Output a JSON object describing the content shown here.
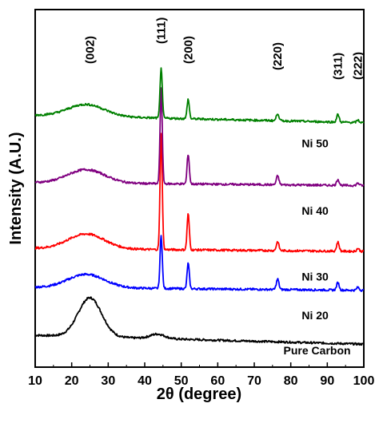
{
  "chart_data": {
    "type": "line",
    "xlabel": "2θ (degree)",
    "ylabel": "Intensity (A.U.)",
    "xlim": [
      10,
      100
    ],
    "x_ticks": [
      10,
      20,
      30,
      40,
      50,
      60,
      70,
      80,
      90,
      100
    ],
    "y_ticks_shown": false,
    "grid": false,
    "peak_labels": [
      {
        "label": "(002)",
        "x": 25
      },
      {
        "label": "(111)",
        "x": 44.5
      },
      {
        "label": "(200)",
        "x": 51.9
      },
      {
        "label": "(220)",
        "x": 76.4
      },
      {
        "label": "(311)",
        "x": 92.9
      },
      {
        "label": "(222)",
        "x": 98.4
      }
    ],
    "series": [
      {
        "name": "Pure Carbon",
        "color": "#000000",
        "baseline": 0.0,
        "broad_peak": {
          "center": 25,
          "height": 1.3,
          "width": 3.2
        },
        "peaks": [
          {
            "x": 43.5,
            "h": 0.15,
            "w": 2.0
          }
        ],
        "slope": -0.3
      },
      {
        "name": "Ni 20",
        "color": "#0000ff",
        "baseline": 1.6,
        "broad_peak": {
          "center": 24,
          "height": 0.45,
          "width": 5.0
        },
        "peaks": [
          {
            "x": 44.5,
            "h": 1.8,
            "w": 0.3
          },
          {
            "x": 51.9,
            "h": 0.85,
            "w": 0.3
          },
          {
            "x": 76.4,
            "h": 0.35,
            "w": 0.35
          },
          {
            "x": 92.9,
            "h": 0.25,
            "w": 0.35
          },
          {
            "x": 98.4,
            "h": 0.1,
            "w": 0.35
          }
        ],
        "slope": -0.1
      },
      {
        "name": "Ni 30",
        "color": "#ff0000",
        "baseline": 2.9,
        "broad_peak": {
          "center": 24,
          "height": 0.5,
          "width": 5.0
        },
        "peaks": [
          {
            "x": 44.5,
            "h": 3.9,
            "w": 0.3
          },
          {
            "x": 51.9,
            "h": 1.2,
            "w": 0.3
          },
          {
            "x": 76.4,
            "h": 0.3,
            "w": 0.35
          },
          {
            "x": 92.9,
            "h": 0.3,
            "w": 0.35
          },
          {
            "x": 98.4,
            "h": 0.1,
            "w": 0.35
          }
        ],
        "slope": -0.1
      },
      {
        "name": "Ni 40",
        "color": "#800080",
        "baseline": 5.1,
        "broad_peak": {
          "center": 24,
          "height": 0.45,
          "width": 5.0
        },
        "peaks": [
          {
            "x": 44.5,
            "h": 3.2,
            "w": 0.3
          },
          {
            "x": 51.9,
            "h": 1.0,
            "w": 0.3
          },
          {
            "x": 76.4,
            "h": 0.3,
            "w": 0.35
          },
          {
            "x": 92.9,
            "h": 0.2,
            "w": 0.35
          },
          {
            "x": 98.4,
            "h": 0.08,
            "w": 0.35
          }
        ],
        "slope": -0.1
      },
      {
        "name": "Ni 50",
        "color": "#008000",
        "baseline": 7.35,
        "broad_peak": {
          "center": 24,
          "height": 0.4,
          "width": 5.0
        },
        "peaks": [
          {
            "x": 44.5,
            "h": 1.7,
            "w": 0.3
          },
          {
            "x": 51.9,
            "h": 0.65,
            "w": 0.3
          },
          {
            "x": 76.4,
            "h": 0.25,
            "w": 0.35
          },
          {
            "x": 92.9,
            "h": 0.25,
            "w": 0.35
          },
          {
            "x": 98.4,
            "h": 0.08,
            "w": 0.35
          }
        ],
        "slope": -0.25
      }
    ]
  }
}
